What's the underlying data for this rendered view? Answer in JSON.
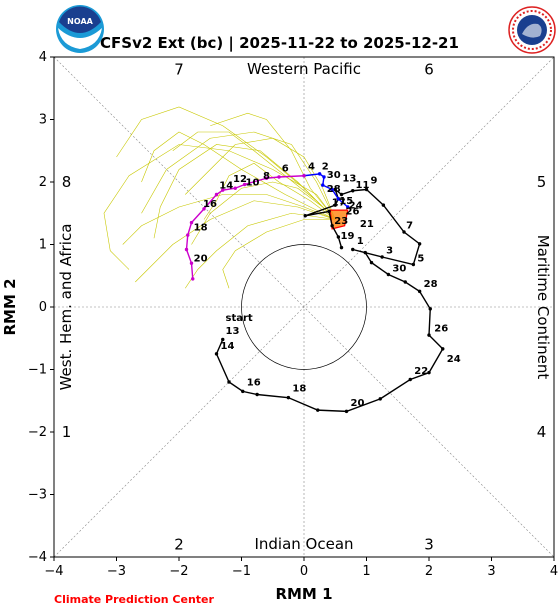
{
  "title": "CFSv2 Ext (bc) | 2025-11-22 to 2025-12-21",
  "credit": "Climate Prediction Center",
  "logos": {
    "left": {
      "icon": "noaa-logo",
      "text": "NOAA"
    },
    "right": {
      "icon": "nws-logo",
      "text": "NATIONAL WEATHER SERVICE"
    }
  },
  "chart_data": {
    "type": "line",
    "title": "CFSv2 Ext (bc) | 2025-11-22 to 2025-12-21",
    "xlabel": "RMM 1",
    "ylabel": "RMM 2",
    "xlim": [
      -4,
      4
    ],
    "ylim": [
      -4,
      4
    ],
    "xticks": [
      "−4",
      "−3",
      "−2",
      "−1",
      "0",
      "1",
      "2",
      "3",
      "4"
    ],
    "yticks": [
      "−4",
      "−3",
      "−2",
      "−1",
      "0",
      "1",
      "2",
      "3",
      "4"
    ],
    "xtick_values": [
      -4,
      -3,
      -2,
      -1,
      0,
      1,
      2,
      3,
      4
    ],
    "ytick_values": [
      -4,
      -3,
      -2,
      -1,
      0,
      1,
      2,
      3,
      4
    ],
    "region_labels": [
      "Western Pacific",
      "Maritime Continent",
      "Indian Ocean",
      "West. Hem. and Africa"
    ],
    "phase_labels": [
      {
        "label": "1",
        "x": -3.8,
        "y": -2.0
      },
      {
        "label": "2",
        "x": -2.0,
        "y": -3.8
      },
      {
        "label": "3",
        "x": 2.0,
        "y": -3.8
      },
      {
        "label": "4",
        "x": 3.8,
        "y": -2.0
      },
      {
        "label": "5",
        "x": 3.8,
        "y": 2.0
      },
      {
        "label": "6",
        "x": 2.0,
        "y": 3.8
      },
      {
        "label": "7",
        "x": -2.0,
        "y": 3.8
      },
      {
        "label": "8",
        "x": -3.8,
        "y": 2.0
      }
    ],
    "colors": {
      "observed": "#000000",
      "forecast_wk1": "#0000ff",
      "forecast_wk2": "#cc00cc",
      "ensemble": "#c8c800",
      "ensemble_mean": "#ff0000"
    },
    "series": [
      {
        "color": "#000000",
        "points": [
          {
            "x": -1.3,
            "y": -0.52,
            "label": "13"
          },
          {
            "x": -1.4,
            "y": -0.75,
            "label": "14"
          },
          {
            "x": -1.2,
            "y": -1.2
          },
          {
            "x": -0.98,
            "y": -1.35,
            "label": "16"
          },
          {
            "x": -0.75,
            "y": -1.4
          },
          {
            "x": -0.25,
            "y": -1.45,
            "label": "18"
          },
          {
            "x": 0.22,
            "y": -1.65
          },
          {
            "x": 0.68,
            "y": -1.67,
            "label": "20"
          },
          {
            "x": 1.22,
            "y": -1.47
          },
          {
            "x": 1.7,
            "y": -1.16,
            "label": "22"
          },
          {
            "x": 2.0,
            "y": -1.05
          },
          {
            "x": 2.22,
            "y": -0.67,
            "label": "24"
          },
          {
            "x": 2.0,
            "y": -0.45
          },
          {
            "x": 2.02,
            "y": -0.03,
            "label": "26"
          },
          {
            "x": 1.85,
            "y": 0.25
          },
          {
            "x": 1.62,
            "y": 0.4,
            "label": "28"
          },
          {
            "x": 1.35,
            "y": 0.52
          },
          {
            "x": 1.08,
            "y": 0.71,
            "label": "30"
          },
          {
            "x": 0.98,
            "y": 0.87
          },
          {
            "x": 0.78,
            "y": 0.92,
            "label": "1"
          },
          {
            "x": 1.25,
            "y": 0.8
          },
          {
            "x": 1.75,
            "y": 0.68,
            "label": "3"
          },
          {
            "x": 1.85,
            "y": 1.01
          },
          {
            "x": 1.6,
            "y": 1.2,
            "label": "5"
          },
          {
            "x": 1.27,
            "y": 1.63
          },
          {
            "x": 1.0,
            "y": 1.88,
            "label": "7"
          },
          {
            "x": 0.78,
            "y": 1.86
          },
          {
            "x": 0.6,
            "y": 1.8,
            "label": "9"
          },
          {
            "x": 0.5,
            "y": 1.88
          },
          {
            "x": 0.55,
            "y": 1.73,
            "label": "11"
          },
          {
            "x": 0.5,
            "y": 1.63
          },
          {
            "x": 0.02,
            "y": 1.46,
            "label": "13"
          },
          {
            "x": 0.4,
            "y": 1.53
          },
          {
            "x": 0.45,
            "y": 1.3,
            "label": "15"
          },
          {
            "x": 0.55,
            "y": 1.12
          },
          {
            "x": 0.6,
            "y": 0.95,
            "label": "17"
          }
        ]
      },
      {
        "color": "#0000ff",
        "points": [
          {
            "x": 0.7,
            "y": 1.6
          },
          {
            "x": 0.55,
            "y": 1.73
          },
          {
            "x": 0.45,
            "y": 1.88
          },
          {
            "x": 0.3,
            "y": 1.95
          },
          {
            "x": 0.32,
            "y": 2.08
          },
          {
            "x": 0.25,
            "y": 2.13
          },
          {
            "x": 0.0,
            "y": 2.1
          }
        ]
      },
      {
        "color": "#cc00cc",
        "points": [
          {
            "x": 0.0,
            "y": 2.1
          },
          {
            "x": -0.4,
            "y": 2.08
          },
          {
            "x": -0.6,
            "y": 2.06
          },
          {
            "x": -0.95,
            "y": 1.96
          },
          {
            "x": -1.1,
            "y": 1.9
          },
          {
            "x": -1.3,
            "y": 1.87
          },
          {
            "x": -1.4,
            "y": 1.8
          },
          {
            "x": -1.6,
            "y": 1.57
          },
          {
            "x": -1.8,
            "y": 1.35
          },
          {
            "x": -1.86,
            "y": 1.15
          },
          {
            "x": -1.88,
            "y": 0.92
          },
          {
            "x": -1.8,
            "y": 0.7
          },
          {
            "x": -1.78,
            "y": 0.45
          }
        ]
      }
    ],
    "point_labels": [
      {
        "label": "start",
        "x": -1.32,
        "y": -0.27
      },
      {
        "label": "13",
        "x": -1.32,
        "y": -0.48
      },
      {
        "label": "14",
        "x": -1.4,
        "y": -0.72
      },
      {
        "label": "16",
        "x": -0.98,
        "y": -1.3
      },
      {
        "label": "18",
        "x": -0.25,
        "y": -1.4
      },
      {
        "label": "20",
        "x": 0.68,
        "y": -1.63
      },
      {
        "label": "22",
        "x": 1.7,
        "y": -1.12
      },
      {
        "label": "24",
        "x": 2.22,
        "y": -0.93
      },
      {
        "label": "26",
        "x": 2.02,
        "y": -0.44
      },
      {
        "label": "28",
        "x": 1.85,
        "y": 0.27
      },
      {
        "label": "30",
        "x": 1.35,
        "y": 0.52
      },
      {
        "label": "1",
        "x": 0.78,
        "y": 0.96
      },
      {
        "label": "3",
        "x": 1.25,
        "y": 0.81
      },
      {
        "label": "5",
        "x": 1.75,
        "y": 0.68
      },
      {
        "label": "7",
        "x": 1.57,
        "y": 1.21
      },
      {
        "label": "9",
        "x": 1.0,
        "y": 1.93
      },
      {
        "label": "11",
        "x": 0.76,
        "y": 1.86
      },
      {
        "label": "13",
        "x": 0.55,
        "y": 1.96
      },
      {
        "label": "15",
        "x": 0.5,
        "y": 1.6
      },
      {
        "label": "17",
        "x": 0.38,
        "y": 1.58
      },
      {
        "label": "19",
        "x": 0.52,
        "y": 1.04
      },
      {
        "label": "21",
        "x": 0.83,
        "y": 1.23
      },
      {
        "label": "24",
        "x": 0.65,
        "y": 1.53
      },
      {
        "label": "26",
        "x": 0.6,
        "y": 1.43
      },
      {
        "label": "28",
        "x": 0.3,
        "y": 1.79
      },
      {
        "label": "30",
        "x": 0.3,
        "y": 2.02
      },
      {
        "label": "23",
        "x": 0.42,
        "y": 1.28
      },
      {
        "label": "4",
        "x": 0.0,
        "y": 2.15
      },
      {
        "label": "2",
        "x": 0.22,
        "y": 2.15
      },
      {
        "label": "6",
        "x": -0.42,
        "y": 2.12
      },
      {
        "label": "8",
        "x": -0.72,
        "y": 2.0
      },
      {
        "label": "10",
        "x": -1.0,
        "y": 1.9
      },
      {
        "label": "12",
        "x": -1.2,
        "y": 1.95
      },
      {
        "label": "14",
        "x": -1.42,
        "y": 1.85
      },
      {
        "label": "16",
        "x": -1.68,
        "y": 1.55
      },
      {
        "label": "18",
        "x": -1.83,
        "y": 1.18
      },
      {
        "label": "20",
        "x": -1.83,
        "y": 0.68
      }
    ],
    "ensemble_area": [
      {
        "x": 0.42,
        "y": 1.55
      },
      {
        "x": 0.7,
        "y": 1.55
      },
      {
        "x": 0.65,
        "y": 1.3
      },
      {
        "x": 0.45,
        "y": 1.25
      }
    ],
    "ensemble_paths": [
      [
        [
          0.5,
          1.4
        ],
        [
          0.2,
          1.8
        ],
        [
          -0.5,
          2.2
        ],
        [
          -1.2,
          2.5
        ],
        [
          -2.0,
          2.6
        ],
        [
          -2.8,
          2.1
        ],
        [
          -3.2,
          1.5
        ],
        [
          -3.1,
          0.9
        ],
        [
          -2.8,
          0.6
        ]
      ],
      [
        [
          0.5,
          1.4
        ],
        [
          0.0,
          1.9
        ],
        [
          -0.6,
          2.4
        ],
        [
          -1.3,
          2.9
        ],
        [
          -2.0,
          3.2
        ],
        [
          -2.6,
          3.0
        ],
        [
          -3.0,
          2.4
        ]
      ],
      [
        [
          0.5,
          1.4
        ],
        [
          -0.1,
          1.6
        ],
        [
          -0.8,
          1.7
        ],
        [
          -1.5,
          1.4
        ],
        [
          -2.1,
          1.0
        ],
        [
          -2.5,
          0.6
        ],
        [
          -2.7,
          0.4
        ]
      ],
      [
        [
          0.5,
          1.4
        ],
        [
          0.1,
          1.9
        ],
        [
          -0.2,
          2.5
        ],
        [
          -0.6,
          3.0
        ],
        [
          -0.9,
          3.1
        ],
        [
          -1.5,
          2.9
        ]
      ],
      [
        [
          0.5,
          1.4
        ],
        [
          -0.3,
          1.8
        ],
        [
          -1.0,
          2.2
        ],
        [
          -1.6,
          2.6
        ],
        [
          -2.0,
          2.8
        ],
        [
          -2.4,
          2.5
        ],
        [
          -2.6,
          2.0
        ]
      ],
      [
        [
          0.5,
          1.4
        ],
        [
          -0.2,
          1.5
        ],
        [
          -0.9,
          1.3
        ],
        [
          -1.4,
          0.9
        ],
        [
          -1.7,
          0.6
        ],
        [
          -1.9,
          0.3
        ]
      ],
      [
        [
          0.5,
          1.4
        ],
        [
          0.3,
          1.9
        ],
        [
          0.0,
          2.4
        ],
        [
          -0.5,
          2.7
        ],
        [
          -1.1,
          2.6
        ],
        [
          -1.5,
          2.2
        ],
        [
          -1.9,
          1.8
        ]
      ],
      [
        [
          0.5,
          1.4
        ],
        [
          0.0,
          1.6
        ],
        [
          -0.6,
          1.8
        ],
        [
          -1.3,
          1.8
        ],
        [
          -2.0,
          1.6
        ],
        [
          -2.6,
          1.3
        ],
        [
          -2.9,
          1.0
        ]
      ],
      [
        [
          0.5,
          1.4
        ],
        [
          0.1,
          1.7
        ],
        [
          -0.4,
          2.0
        ],
        [
          -0.8,
          2.3
        ],
        [
          -1.2,
          2.1
        ],
        [
          -1.4,
          1.7
        ],
        [
          -1.6,
          1.4
        ]
      ],
      [
        [
          0.5,
          1.4
        ],
        [
          0.0,
          1.4
        ],
        [
          -0.6,
          1.2
        ],
        [
          -1.1,
          0.9
        ],
        [
          -1.3,
          0.6
        ],
        [
          -1.2,
          0.3
        ]
      ],
      [
        [
          0.5,
          1.4
        ],
        [
          0.2,
          2.0
        ],
        [
          -0.2,
          2.6
        ],
        [
          -0.8,
          2.8
        ],
        [
          -1.5,
          2.7
        ],
        [
          -2.2,
          2.2
        ],
        [
          -2.6,
          1.5
        ]
      ],
      [
        [
          0.5,
          1.4
        ],
        [
          -0.1,
          2.0
        ],
        [
          -0.7,
          2.5
        ],
        [
          -1.4,
          2.6
        ],
        [
          -2.0,
          2.2
        ],
        [
          -2.3,
          1.6
        ],
        [
          -2.4,
          1.1
        ]
      ],
      [
        [
          0.5,
          1.4
        ],
        [
          0.3,
          1.6
        ],
        [
          -0.1,
          1.9
        ],
        [
          -0.5,
          2.0
        ],
        [
          -1.0,
          1.9
        ],
        [
          -1.5,
          1.5
        ],
        [
          -1.8,
          1.0
        ]
      ],
      [
        [
          0.5,
          1.4
        ],
        [
          0.2,
          1.7
        ],
        [
          -0.3,
          2.1
        ],
        [
          -0.8,
          2.5
        ],
        [
          -1.2,
          2.8
        ],
        [
          -1.7,
          2.8
        ],
        [
          -2.1,
          2.5
        ]
      ]
    ]
  }
}
